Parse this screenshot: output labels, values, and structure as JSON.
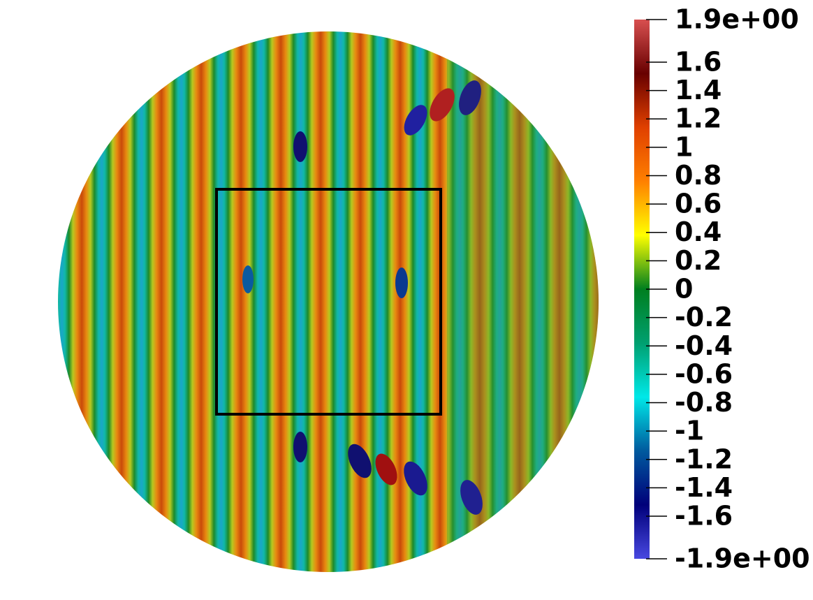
{
  "colorbar": {
    "lim": [
      -1.9,
      1.9
    ],
    "ticks": [
      {
        "value": 1.9,
        "label": "1.9e+00"
      },
      1.6,
      1.4,
      1.2,
      1,
      0.8,
      0.6,
      0.4,
      0.2,
      0,
      -0.2,
      -0.4,
      -0.6,
      -0.8,
      -1,
      -1.2,
      -1.4,
      -1.6,
      {
        "value": -1.9,
        "label": "-1.9e+00"
      }
    ],
    "colors": [
      "#4848e0",
      "#00007a",
      "#005a9e",
      "#00e8e8",
      "#00a070",
      "#007f1f",
      "#ffff00",
      "#ff8000",
      "#e04000",
      "#680000",
      "#d85050"
    ]
  }
}
